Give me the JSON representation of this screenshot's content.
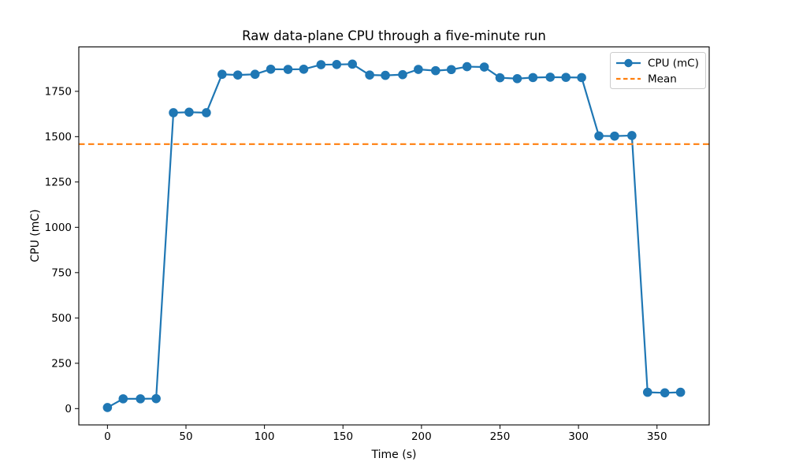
{
  "chart_data": {
    "type": "line",
    "title": "Raw data-plane CPU through a five-minute run",
    "xlabel": "Time (s)",
    "ylabel": "CPU (mC)",
    "xlim": [
      -18.25,
      383.25
    ],
    "ylim": [
      -90,
      1995
    ],
    "xticks": [
      0,
      50,
      100,
      150,
      200,
      250,
      300,
      350
    ],
    "yticks": [
      0,
      250,
      500,
      750,
      1000,
      1250,
      1500,
      1750
    ],
    "grid": false,
    "legend_position": "upper right",
    "x": [
      0,
      10,
      21,
      31,
      42,
      52,
      63,
      73,
      83,
      94,
      104,
      115,
      125,
      136,
      146,
      156,
      167,
      177,
      188,
      198,
      209,
      219,
      229,
      240,
      250,
      261,
      271,
      282,
      292,
      302,
      313,
      323,
      334,
      344,
      355,
      365
    ],
    "series": [
      {
        "name": "CPU (mC)",
        "color": "#1f77b4",
        "line_style": "solid",
        "marker": "circle",
        "values": [
          6,
          54,
          54,
          55,
          1632,
          1635,
          1632,
          1844,
          1840,
          1844,
          1872,
          1871,
          1872,
          1897,
          1898,
          1900,
          1840,
          1838,
          1842,
          1871,
          1864,
          1870,
          1886,
          1884,
          1825,
          1820,
          1826,
          1828,
          1827,
          1826,
          1504,
          1503,
          1506,
          90,
          87,
          90
        ]
      },
      {
        "name": "Mean",
        "color": "#ff7f0e",
        "line_style": "dashed",
        "type": "hline",
        "value": 1459
      }
    ]
  }
}
